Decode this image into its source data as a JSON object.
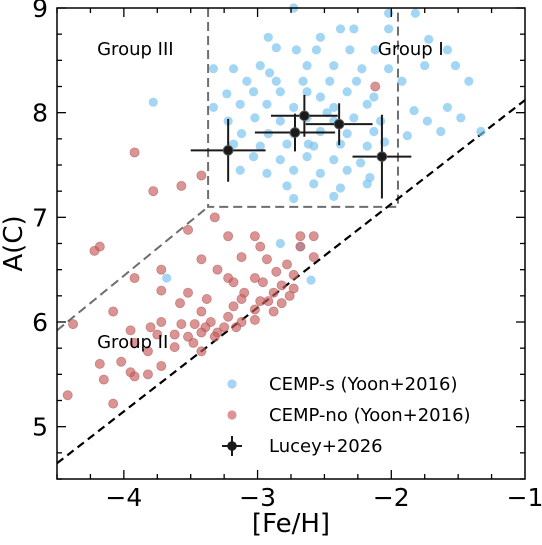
{
  "chart_data": {
    "type": "scatter",
    "xlabel": "[Fe/H]",
    "ylabel": "A(C)",
    "xlim": [
      -4.5,
      -1.0
    ],
    "ylim": [
      4.5,
      9.0
    ],
    "x_ticks": [
      {
        "value": -4,
        "label": "−4"
      },
      {
        "value": -3,
        "label": "−3"
      },
      {
        "value": -2,
        "label": "−2"
      },
      {
        "value": -1,
        "label": "−1"
      }
    ],
    "y_ticks": [
      {
        "value": 5,
        "label": "5"
      },
      {
        "value": 6,
        "label": "6"
      },
      {
        "value": 7,
        "label": "7"
      },
      {
        "value": 8,
        "label": "8"
      },
      {
        "value": 9,
        "label": "9"
      }
    ],
    "grid": false,
    "legend_position": "bottom-right",
    "colors": {
      "cemp_s": "#7cc4f0",
      "cemp_no": "#c85a5a",
      "lucey": "#1a1a1a"
    },
    "annotations": [
      {
        "text": "Group III",
        "x": -4.2,
        "y": 8.55
      },
      {
        "text": "Group I",
        "x": -2.1,
        "y": 8.55
      },
      {
        "text": "Group II",
        "x": -4.2,
        "y": 5.75
      }
    ],
    "series": [
      {
        "name": "CEMP-s (Yoon+2016)",
        "marker": "circle",
        "points": [
          [
            -2.73,
            9.0
          ],
          [
            -2.02,
            8.95
          ],
          [
            -1.82,
            8.95
          ],
          [
            -2.02,
            8.8
          ],
          [
            -2.38,
            8.8
          ],
          [
            -2.28,
            8.8
          ],
          [
            -1.72,
            8.7
          ],
          [
            -2.92,
            8.72
          ],
          [
            -2.86,
            8.62
          ],
          [
            -2.71,
            8.6
          ],
          [
            -2.56,
            8.6
          ],
          [
            -2.31,
            8.6
          ],
          [
            -2.12,
            8.6
          ],
          [
            -1.58,
            8.6
          ],
          [
            -3.33,
            8.42
          ],
          [
            -3.18,
            8.42
          ],
          [
            -2.98,
            8.45
          ],
          [
            -2.63,
            8.45
          ],
          [
            -2.43,
            8.45
          ],
          [
            -2.22,
            8.42
          ],
          [
            -2.02,
            8.42
          ],
          [
            -1.75,
            8.45
          ],
          [
            -1.52,
            8.45
          ],
          [
            -3.08,
            8.3
          ],
          [
            -2.86,
            8.3
          ],
          [
            -2.66,
            8.3
          ],
          [
            -2.46,
            8.3
          ],
          [
            -2.26,
            8.3
          ],
          [
            -1.92,
            8.3
          ],
          [
            -1.42,
            8.3
          ],
          [
            -3.23,
            8.18
          ],
          [
            -3.03,
            8.2
          ],
          [
            -2.83,
            8.2
          ],
          [
            -2.63,
            8.2
          ],
          [
            -2.53,
            8.15
          ],
          [
            -2.33,
            8.2
          ],
          [
            -2.13,
            8.15
          ],
          [
            -3.78,
            8.1
          ],
          [
            -3.33,
            8.05
          ],
          [
            -3.13,
            8.08
          ],
          [
            -2.93,
            8.08
          ],
          [
            -2.73,
            8.05
          ],
          [
            -2.43,
            8.05
          ],
          [
            -2.18,
            8.08
          ],
          [
            -1.83,
            8.02
          ],
          [
            -1.58,
            8.05
          ],
          [
            -3.22,
            7.92
          ],
          [
            -3.02,
            7.95
          ],
          [
            -2.83,
            7.92
          ],
          [
            -2.63,
            7.95
          ],
          [
            -2.43,
            7.92
          ],
          [
            -2.28,
            7.95
          ],
          [
            -2.08,
            7.92
          ],
          [
            -1.73,
            7.92
          ],
          [
            -1.48,
            7.95
          ],
          [
            -3.12,
            7.8
          ],
          [
            -2.92,
            7.8
          ],
          [
            -2.73,
            7.8
          ],
          [
            -2.53,
            7.82
          ],
          [
            -2.33,
            7.8
          ],
          [
            -2.13,
            7.82
          ],
          [
            -1.88,
            7.78
          ],
          [
            -1.63,
            7.82
          ],
          [
            -1.33,
            7.82
          ],
          [
            -3.18,
            7.7
          ],
          [
            -2.98,
            7.68
          ],
          [
            -2.78,
            7.7
          ],
          [
            -2.58,
            7.68
          ],
          [
            -2.38,
            7.7
          ],
          [
            -2.18,
            7.68
          ],
          [
            -2.05,
            7.72
          ],
          [
            -3.03,
            7.58
          ],
          [
            -2.83,
            7.55
          ],
          [
            -2.63,
            7.58
          ],
          [
            -2.43,
            7.55
          ],
          [
            -2.23,
            7.52
          ],
          [
            -3.13,
            7.45
          ],
          [
            -2.93,
            7.42
          ],
          [
            -2.73,
            7.45
          ],
          [
            -2.53,
            7.42
          ],
          [
            -2.33,
            7.45
          ],
          [
            -2.16,
            7.38
          ],
          [
            -2.78,
            7.3
          ],
          [
            -2.58,
            7.32
          ],
          [
            -2.38,
            7.28
          ],
          [
            -2.18,
            7.32
          ],
          [
            -2.73,
            7.18
          ],
          [
            -2.43,
            7.2
          ],
          [
            -2.83,
            6.75
          ],
          [
            -2.68,
            6.72
          ],
          [
            -3.68,
            6.42
          ],
          [
            -2.6,
            6.4
          ],
          [
            -2.53,
            8.72
          ],
          [
            -2.48,
            8.0
          ],
          [
            -2.62,
            7.7
          ],
          [
            -2.91,
            8.38
          ]
        ]
      },
      {
        "name": "CEMP-no (Yoon+2016)",
        "marker": "circle",
        "points": [
          [
            -3.92,
            7.62
          ],
          [
            -3.42,
            7.4
          ],
          [
            -3.57,
            7.3
          ],
          [
            -3.78,
            7.25
          ],
          [
            -3.32,
            7.0
          ],
          [
            -3.52,
            6.88
          ],
          [
            -3.22,
            6.82
          ],
          [
            -3.02,
            6.82
          ],
          [
            -2.98,
            6.72
          ],
          [
            -2.68,
            6.82
          ],
          [
            -2.68,
            6.72
          ],
          [
            -4.18,
            6.72
          ],
          [
            -4.22,
            6.68
          ],
          [
            -2.58,
            6.62
          ],
          [
            -3.12,
            6.62
          ],
          [
            -3.42,
            6.6
          ],
          [
            -3.3,
            6.5
          ],
          [
            -2.93,
            6.6
          ],
          [
            -2.78,
            6.55
          ],
          [
            -2.86,
            6.48
          ],
          [
            -3.72,
            6.5
          ],
          [
            -2.73,
            6.45
          ],
          [
            -3.92,
            6.42
          ],
          [
            -3.22,
            6.42
          ],
          [
            -3.02,
            6.42
          ],
          [
            -3.18,
            6.38
          ],
          [
            -2.96,
            6.38
          ],
          [
            -2.82,
            6.35
          ],
          [
            -2.73,
            6.32
          ],
          [
            -3.72,
            6.3
          ],
          [
            -3.52,
            6.28
          ],
          [
            -3.1,
            6.28
          ],
          [
            -2.88,
            6.28
          ],
          [
            -2.76,
            6.25
          ],
          [
            -2.92,
            6.2
          ],
          [
            -3.38,
            6.22
          ],
          [
            -3.12,
            6.22
          ],
          [
            -2.98,
            6.2
          ],
          [
            -2.82,
            6.18
          ],
          [
            -3.58,
            6.18
          ],
          [
            -3.18,
            6.15
          ],
          [
            -3.02,
            6.12
          ],
          [
            -2.88,
            6.1
          ],
          [
            -4.08,
            6.1
          ],
          [
            -3.42,
            6.1
          ],
          [
            -3.22,
            6.05
          ],
          [
            -3.35,
            6.0
          ],
          [
            -3.12,
            6.0
          ],
          [
            -3.02,
            6.02
          ],
          [
            -3.72,
            6.0
          ],
          [
            -3.57,
            5.98
          ],
          [
            -3.47,
            5.98
          ],
          [
            -3.39,
            5.95
          ],
          [
            -3.25,
            5.95
          ],
          [
            -3.16,
            5.95
          ],
          [
            -3.3,
            5.9
          ],
          [
            -3.42,
            5.9
          ],
          [
            -4.38,
            5.98
          ],
          [
            -3.8,
            5.95
          ],
          [
            -3.95,
            5.92
          ],
          [
            -3.75,
            5.88
          ],
          [
            -3.62,
            5.88
          ],
          [
            -3.52,
            5.86
          ],
          [
            -3.32,
            5.86
          ],
          [
            -3.48,
            5.8
          ],
          [
            -3.92,
            5.8
          ],
          [
            -3.82,
            5.72
          ],
          [
            -3.62,
            5.76
          ],
          [
            -3.42,
            5.72
          ],
          [
            -4.02,
            5.62
          ],
          [
            -4.18,
            5.6
          ],
          [
            -3.72,
            5.58
          ],
          [
            -3.82,
            5.5
          ],
          [
            -3.95,
            5.52
          ],
          [
            -4.15,
            5.45
          ],
          [
            -4.42,
            5.3
          ],
          [
            -4.08,
            5.22
          ],
          [
            -3.92,
            5.48
          ],
          [
            -2.58,
            6.82
          ],
          [
            -2.12,
            8.25
          ]
        ]
      },
      {
        "name": "Lucey+2026",
        "marker": "circle-errorbar",
        "points": [
          {
            "x": -3.22,
            "y": 7.64,
            "xerr": 0.28,
            "yerr": 0.3
          },
          {
            "x": -2.65,
            "y": 7.97,
            "xerr": 0.25,
            "yerr": 0.2
          },
          {
            "x": -2.72,
            "y": 7.81,
            "xerr": 0.3,
            "yerr": 0.18
          },
          {
            "x": -2.39,
            "y": 7.89,
            "xerr": 0.25,
            "yerr": 0.2
          },
          {
            "x": -2.07,
            "y": 7.58,
            "xerr": 0.22,
            "yerr": 0.4
          }
        ]
      }
    ],
    "boundaries": [
      {
        "kind": "group-i-box",
        "points": [
          [
            -3.37,
            9.0
          ],
          [
            -3.37,
            7.1
          ],
          [
            -1.95,
            7.1
          ],
          [
            -1.95,
            9.0
          ]
        ]
      },
      {
        "kind": "group-ii-iii-divider",
        "points": [
          [
            -4.5,
            5.92
          ],
          [
            -3.37,
            7.1
          ]
        ]
      },
      {
        "kind": "lower-envelope",
        "points": [
          [
            -4.5,
            4.65
          ],
          [
            -1.0,
            8.12
          ]
        ]
      }
    ]
  }
}
